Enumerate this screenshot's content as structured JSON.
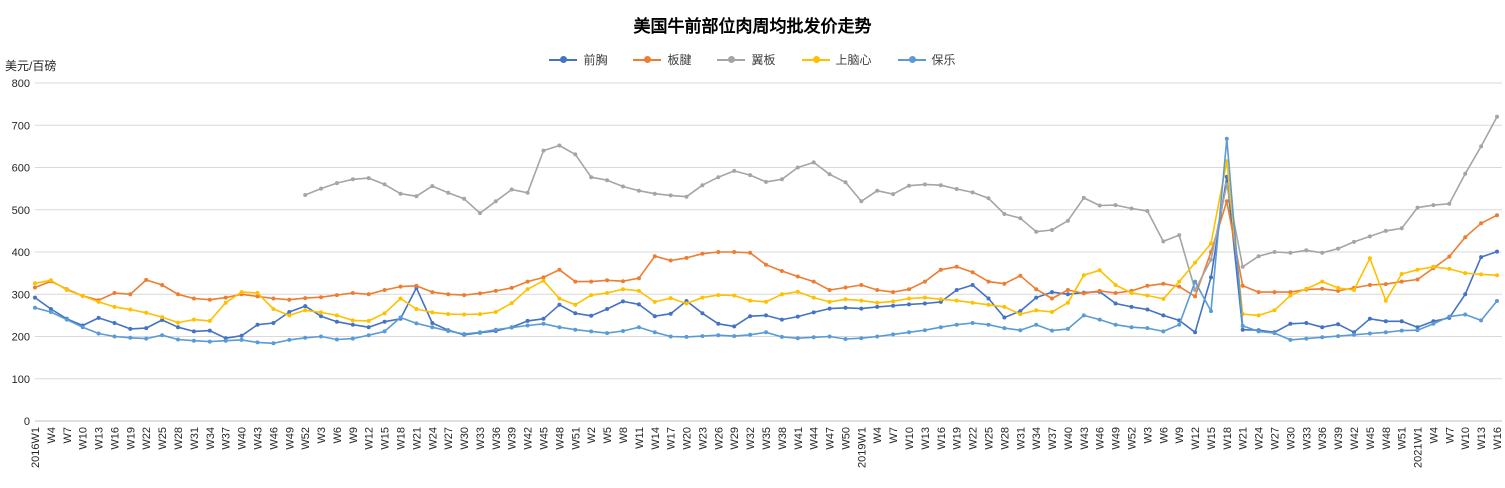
{
  "title": "美国牛前部位肉周均批发价走势",
  "y_axis": {
    "unit_label": "美元/百磅",
    "ticks": [
      800,
      700,
      600,
      500,
      400,
      300,
      200,
      100,
      0
    ]
  },
  "chart_data": {
    "type": "line",
    "title": "美国牛前部位肉周均批发价走势",
    "xlabel": "",
    "ylabel": "美元/百磅",
    "ylim": [
      0,
      800
    ],
    "grid": true,
    "legend_position": "top",
    "categories": [
      "2016W1",
      "W4",
      "W7",
      "W10",
      "W13",
      "W16",
      "W19",
      "W22",
      "W25",
      "W28",
      "W31",
      "W34",
      "W37",
      "W40",
      "W43",
      "W46",
      "W49",
      "W52",
      "W3",
      "W6",
      "W9",
      "W12",
      "W15",
      "W18",
      "W21",
      "W24",
      "W27",
      "W30",
      "W33",
      "W36",
      "W39",
      "W42",
      "W45",
      "W48",
      "W51",
      "W2",
      "W5",
      "W8",
      "W11",
      "W14",
      "W17",
      "W20",
      "W23",
      "W26",
      "W29",
      "W32",
      "W35",
      "W38",
      "W41",
      "W44",
      "W47",
      "W50",
      "2019W1",
      "W4",
      "W7",
      "W10",
      "W13",
      "W16",
      "W19",
      "W22",
      "W25",
      "W28",
      "W31",
      "W34",
      "W37",
      "W40",
      "W43",
      "W46",
      "W49",
      "W52",
      "W3",
      "W6",
      "W9",
      "W12",
      "W15",
      "W18",
      "W21",
      "W24",
      "W27",
      "W30",
      "W33",
      "W36",
      "W39",
      "W42",
      "W45",
      "W48",
      "W51",
      "2021W1",
      "W4",
      "W7",
      "W10",
      "W13",
      "W16"
    ],
    "series": [
      {
        "name": "前胸",
        "color": "#4472C4",
        "values": [
          292,
          265,
          242,
          226,
          244,
          232,
          218,
          220,
          239,
          222,
          212,
          214,
          196,
          202,
          228,
          232,
          258,
          272,
          248,
          235,
          228,
          222,
          235,
          242,
          315,
          232,
          215,
          204,
          209,
          213,
          222,
          237,
          242,
          275,
          255,
          249,
          265,
          283,
          276,
          248,
          254,
          284,
          255,
          230,
          224,
          248,
          250,
          240,
          247,
          257,
          266,
          268,
          266,
          270,
          273,
          276,
          278,
          282,
          310,
          322,
          290,
          245,
          260,
          292,
          305,
          300,
          304,
          306,
          278,
          270,
          264,
          250,
          238,
          210,
          340,
          578,
          216,
          215,
          210,
          230,
          232,
          222,
          229,
          210,
          242,
          236,
          236,
          222,
          236,
          244,
          300,
          388,
          401
        ]
      },
      {
        "name": "板腱",
        "color": "#ED7D31",
        "values": [
          316,
          331,
          312,
          296,
          286,
          303,
          300,
          334,
          322,
          300,
          290,
          287,
          292,
          300,
          295,
          290,
          287,
          291,
          293,
          298,
          303,
          300,
          310,
          318,
          320,
          305,
          300,
          298,
          302,
          308,
          315,
          330,
          340,
          358,
          330,
          330,
          333,
          331,
          338,
          390,
          380,
          386,
          396,
          400,
          400,
          398,
          370,
          355,
          342,
          330,
          310,
          316,
          322,
          310,
          305,
          312,
          330,
          358,
          365,
          352,
          330,
          325,
          344,
          312,
          290,
          310,
          302,
          308,
          303,
          308,
          320,
          325,
          318,
          295,
          400,
          520,
          320,
          305,
          305,
          305,
          311,
          313,
          308,
          315,
          322,
          324,
          330,
          335,
          362,
          389,
          435,
          468,
          487
        ]
      },
      {
        "name": "翼板",
        "color": "#A5A5A5",
        "values": [
          null,
          null,
          null,
          null,
          null,
          null,
          null,
          null,
          null,
          null,
          null,
          null,
          null,
          null,
          null,
          null,
          null,
          535,
          550,
          563,
          572,
          575,
          560,
          538,
          532,
          556,
          540,
          526,
          492,
          520,
          548,
          540,
          640,
          652,
          631,
          577,
          570,
          555,
          545,
          538,
          534,
          531,
          558,
          577,
          592,
          582,
          566,
          572,
          600,
          612,
          584,
          565,
          520,
          545,
          537,
          557,
          560,
          558,
          549,
          541,
          527,
          490,
          480,
          448,
          452,
          474,
          528,
          510,
          511,
          503,
          497,
          425,
          440,
          310,
          382,
          560,
          365,
          390,
          400,
          398,
          404,
          398,
          408,
          424,
          437,
          450,
          456,
          505,
          511,
          514,
          585,
          650,
          720
        ]
      },
      {
        "name": "上脑心",
        "color": "#FFC000",
        "values": [
          326,
          333,
          310,
          296,
          282,
          270,
          264,
          256,
          246,
          233,
          240,
          237,
          280,
          305,
          303,
          265,
          250,
          262,
          257,
          250,
          238,
          237,
          255,
          290,
          265,
          257,
          253,
          252,
          253,
          258,
          279,
          312,
          332,
          290,
          275,
          298,
          303,
          312,
          308,
          282,
          291,
          278,
          292,
          298,
          297,
          285,
          282,
          300,
          306,
          292,
          282,
          288,
          285,
          280,
          283,
          290,
          292,
          288,
          285,
          280,
          275,
          270,
          253,
          262,
          258,
          280,
          345,
          357,
          322,
          303,
          297,
          289,
          330,
          375,
          420,
          615,
          253,
          250,
          262,
          297,
          313,
          330,
          315,
          310,
          385,
          285,
          348,
          358,
          365,
          360,
          350,
          347,
          345
        ]
      },
      {
        "name": "保乐",
        "color": "#5B9BD5",
        "values": [
          268,
          258,
          240,
          222,
          207,
          200,
          197,
          195,
          203,
          193,
          190,
          188,
          190,
          192,
          186,
          184,
          192,
          197,
          200,
          193,
          195,
          203,
          212,
          245,
          231,
          222,
          213,
          206,
          210,
          216,
          221,
          226,
          230,
          222,
          216,
          212,
          208,
          213,
          222,
          210,
          200,
          199,
          201,
          203,
          201,
          204,
          210,
          199,
          196,
          198,
          200,
          194,
          196,
          200,
          205,
          210,
          215,
          222,
          228,
          232,
          228,
          220,
          215,
          228,
          214,
          218,
          250,
          240,
          228,
          222,
          220,
          212,
          228,
          330,
          260,
          668,
          225,
          212,
          208,
          192,
          195,
          198,
          201,
          204,
          207,
          210,
          214,
          215,
          230,
          247,
          252,
          238,
          284
        ]
      }
    ]
  }
}
